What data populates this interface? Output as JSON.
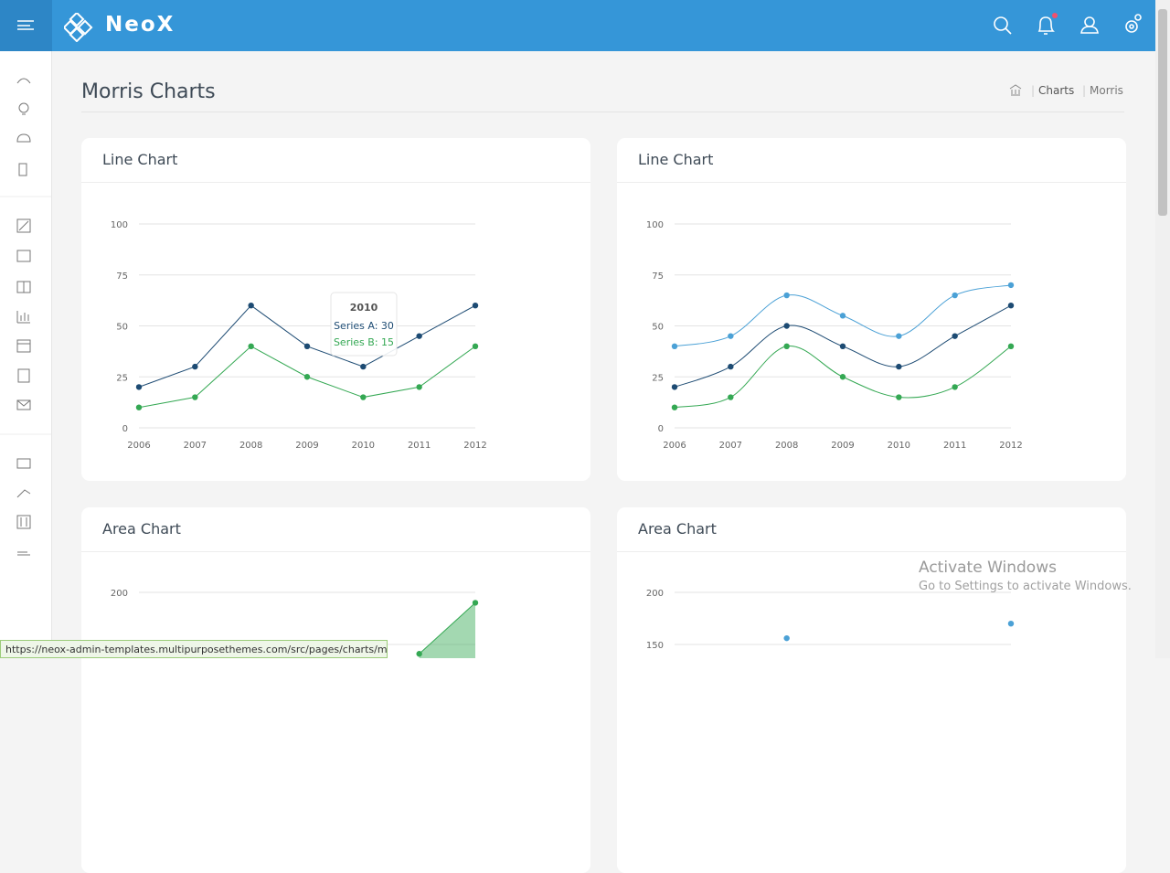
{
  "header": {
    "brand": "NeoX"
  },
  "page": {
    "title": "Morris Charts",
    "breadcrumb": [
      "Charts",
      "Morris"
    ]
  },
  "chart_data": [
    {
      "type": "line",
      "title": "Line Chart",
      "smooth": false,
      "categories": [
        "2006",
        "2007",
        "2008",
        "2009",
        "2010",
        "2011",
        "2012"
      ],
      "series": [
        {
          "color": "#1d4b73",
          "values": [
            20,
            30,
            60,
            40,
            30,
            45,
            60
          ]
        },
        {
          "color": "#34a853",
          "values": [
            10,
            15,
            40,
            25,
            15,
            20,
            40
          ]
        }
      ],
      "ylim": [
        0,
        100
      ],
      "yticks": [
        0,
        25,
        50,
        75,
        100
      ],
      "grid": true,
      "tooltip": {
        "title": "2010",
        "lines": [
          "Series A: 30",
          "Series B: 15"
        ]
      }
    },
    {
      "type": "line",
      "title": "Line Chart",
      "smooth": true,
      "categories": [
        "2006",
        "2007",
        "2008",
        "2009",
        "2010",
        "2011",
        "2012"
      ],
      "series": [
        {
          "color": "#4ba1d6",
          "values": [
            40,
            45,
            65,
            55,
            45,
            65,
            70
          ]
        },
        {
          "color": "#1d4b73",
          "values": [
            20,
            30,
            50,
            40,
            30,
            45,
            60
          ]
        },
        {
          "color": "#34a853",
          "values": [
            10,
            15,
            40,
            25,
            15,
            20,
            40
          ]
        }
      ],
      "ylim": [
        0,
        100
      ],
      "yticks": [
        0,
        25,
        50,
        75,
        100
      ],
      "grid": true
    },
    {
      "type": "area",
      "title": "Area Chart",
      "smooth": false,
      "categories": [
        null,
        null,
        null,
        null,
        null,
        null,
        null
      ],
      "series": [
        {
          "color": "#34a853",
          "values": [
            null,
            null,
            null,
            null,
            null,
            141,
            190
          ]
        }
      ],
      "yticks": [
        150,
        200
      ],
      "grid": true
    },
    {
      "type": "area",
      "title": "Area Chart",
      "smooth": true,
      "categories": [
        null,
        null,
        null,
        null,
        null,
        null,
        null
      ],
      "series": [
        {
          "color": "#4ba1d6",
          "values": [
            null,
            null,
            156,
            null,
            null,
            null,
            170
          ]
        }
      ],
      "yticks": [
        150,
        200
      ],
      "grid": true
    }
  ],
  "status_bar": {
    "url": "https://neox-admin-templates.multipurposethemes.com/src/pages/charts/morris...."
  },
  "watermark": {
    "title": "Activate Windows",
    "subtitle": "Go to Settings to activate Windows."
  }
}
